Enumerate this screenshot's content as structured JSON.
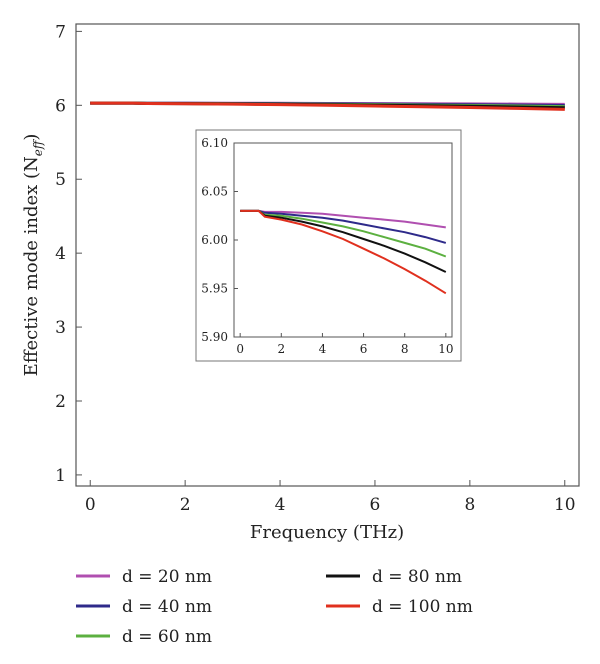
{
  "chart_data": {
    "type": "line",
    "xlabel": "Frequency (THz)",
    "ylabel": "Effective mode index (N",
    "ylabel_sub": "eff",
    "ylabel_close": ")",
    "xlim": [
      -0.3,
      10.3
    ],
    "ylim": [
      0.85,
      7.1
    ],
    "xticks": [
      0,
      2,
      4,
      6,
      8,
      10
    ],
    "yticks": [
      1,
      2,
      3,
      4,
      5,
      6,
      7
    ],
    "grid": false,
    "legend_position": "bottom",
    "series": [
      {
        "name": "d = 20 nm",
        "color": "#b04fb0",
        "x": [
          0,
          0.9,
          1.2,
          2,
          3,
          4,
          5,
          6,
          7,
          8,
          9,
          10
        ],
        "y": [
          6.03,
          6.03,
          6.029,
          6.029,
          6.028,
          6.027,
          6.025,
          6.023,
          6.021,
          6.019,
          6.016,
          6.013
        ]
      },
      {
        "name": "d = 40 nm",
        "color": "#2e2a8a",
        "x": [
          0,
          0.9,
          1.2,
          2,
          3,
          4,
          5,
          6,
          7,
          8,
          9,
          10
        ],
        "y": [
          6.03,
          6.03,
          6.028,
          6.027,
          6.025,
          6.023,
          6.02,
          6.016,
          6.012,
          6.008,
          6.003,
          5.997
        ]
      },
      {
        "name": "d = 60 nm",
        "color": "#5cb040",
        "x": [
          0,
          0.9,
          1.2,
          2,
          3,
          4,
          5,
          6,
          7,
          8,
          9,
          10
        ],
        "y": [
          6.03,
          6.03,
          6.026,
          6.025,
          6.022,
          6.018,
          6.014,
          6.009,
          6.003,
          5.997,
          5.991,
          5.983
        ]
      },
      {
        "name": "d = 80 nm",
        "color": "#111111",
        "x": [
          0,
          0.9,
          1.2,
          2,
          3,
          4,
          5,
          6,
          7,
          8,
          9,
          10
        ],
        "y": [
          6.03,
          6.03,
          6.025,
          6.023,
          6.019,
          6.014,
          6.008,
          6.001,
          5.994,
          5.986,
          5.977,
          5.967
        ]
      },
      {
        "name": "d = 100 nm",
        "color": "#e0301e",
        "x": [
          0,
          0.9,
          1.2,
          2,
          3,
          4,
          5,
          6,
          7,
          8,
          9,
          10
        ],
        "y": [
          6.03,
          6.03,
          6.024,
          6.021,
          6.016,
          6.009,
          6.001,
          5.991,
          5.981,
          5.97,
          5.958,
          5.945
        ]
      }
    ],
    "inset": {
      "xlim": [
        -0.3,
        10.3
      ],
      "ylim": [
        5.9,
        6.1
      ],
      "xticks": [
        0,
        2,
        4,
        6,
        8,
        10
      ],
      "yticks": [
        5.9,
        5.95,
        6.0,
        6.05,
        6.1
      ],
      "ytick_labels": [
        "5.90",
        "5.95",
        "6.00",
        "6.05",
        "6.10"
      ]
    }
  }
}
